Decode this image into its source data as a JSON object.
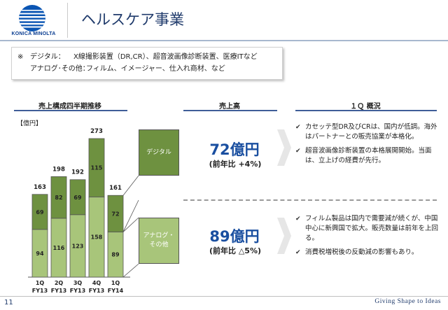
{
  "header": {
    "brand": "KONICA MINOLTA",
    "title": "ヘルスケア事業"
  },
  "note": {
    "mark": "※",
    "row1_label": "デジタル：",
    "row1_text": "X線撮影装置（DR,CR）、超音波画像診断装置、医療ITなど",
    "row2_label": "アナログ･その他：",
    "row2_text": "フィルム、イメージャー、仕入れ商材、など"
  },
  "sections": {
    "chart_title": "売上構成四半期推移",
    "sales_title": "売上高",
    "overview_title": "１Ｑ 概況"
  },
  "unit_label": "【億円】",
  "chart_data": {
    "type": "bar",
    "stacked": true,
    "categories": [
      "1Q\nFY13",
      "2Q\nFY13",
      "3Q\nFY13",
      "4Q\nFY13",
      "1Q\nFY14"
    ],
    "category_lines": [
      [
        "1Q",
        "FY13"
      ],
      [
        "2Q",
        "FY13"
      ],
      [
        "3Q",
        "FY13"
      ],
      [
        "4Q",
        "FY13"
      ],
      [
        "1Q",
        "FY14"
      ]
    ],
    "series": [
      {
        "values": [
          94,
          116,
          123,
          158,
          89
        ],
        "color": "#a8c57a"
      },
      {
        "values": [
          69,
          82,
          69,
          115,
          72
        ],
        "color": "#6e9140"
      }
    ],
    "totals": [
      163,
      198,
      192,
      273,
      161
    ],
    "ylim": [
      0,
      273
    ],
    "legend": "none",
    "grid": false
  },
  "categories": {
    "digital": "デジタル",
    "analog_line1": "アナログ・",
    "analog_line2": "その他"
  },
  "sales": {
    "digital_value": "72億円",
    "digital_yoy": "(前年比 +4%)",
    "analog_value": "89億円",
    "analog_yoy": "(前年比 △5%)"
  },
  "overview": {
    "digital": [
      "カセッテ型DR及びCRは、国内が低調。海外はパートナーとの販売協業が本格化。",
      "超音波画像診断装置の本格展開開始。当面は、立上げの経費が先行。"
    ],
    "analog": [
      "フィルム製品は国内で需要減が続くが、中国中心に新興国で拡大。販売数量は前年を上回る。",
      "消費税増税後の反動減の影響もあり。"
    ]
  },
  "footer": {
    "page": "11",
    "slogan": "Giving Shape to Ideas"
  },
  "colors": {
    "title": "#1f3a6b",
    "accent_blue": "#1a4fa0",
    "digital": "#6e9140",
    "analog": "#a8c57a"
  }
}
